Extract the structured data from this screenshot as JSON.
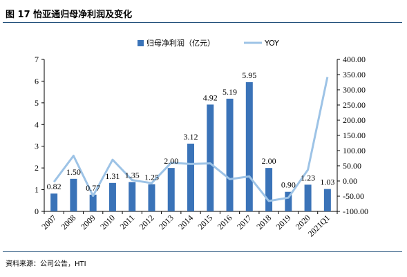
{
  "figure": {
    "title": "图 17 怡亚通归母净利润及变化",
    "source": "资料来源：公司公告，HTI"
  },
  "colors": {
    "bar": "#3a73b8",
    "line": "#9dc3e6",
    "axis": "#000000"
  },
  "chart_data": {
    "type": "bar+line",
    "categories": [
      "2007",
      "2008",
      "2009",
      "2010",
      "2011",
      "2012",
      "2013",
      "2014",
      "2015",
      "2016",
      "2017",
      "2018",
      "2019",
      "2020",
      "2021Q1"
    ],
    "series": [
      {
        "name": "归母净利润（亿元）",
        "type": "bar",
        "axis": "left",
        "values": [
          0.82,
          1.5,
          0.77,
          1.31,
          1.35,
          1.25,
          2.0,
          3.12,
          4.92,
          5.19,
          5.95,
          2.0,
          0.9,
          1.23,
          1.03
        ],
        "labels": [
          "0.82",
          "1.50",
          "0.77",
          "1.31",
          "1.35",
          "1.25",
          "2.00",
          "3.12",
          "4.92",
          "5.19",
          "5.95",
          "2.00",
          "0.90",
          "1.23",
          "1.03"
        ]
      },
      {
        "name": "YOY",
        "type": "line",
        "axis": "right",
        "values": [
          -3,
          83,
          -49,
          70,
          3,
          -7,
          60,
          56,
          58,
          6,
          15,
          -66,
          -55,
          37,
          342
        ]
      }
    ],
    "y_left": {
      "min": 0,
      "max": 7,
      "ticks": [
        "0",
        "1",
        "2",
        "3",
        "4",
        "5",
        "6",
        "7"
      ]
    },
    "y_right": {
      "min": -100,
      "max": 400,
      "ticks": [
        "-100.00",
        "-50.00",
        "0.00",
        "50.00",
        "100.00",
        "150.00",
        "200.00",
        "250.00",
        "300.00",
        "350.00",
        "400.00"
      ]
    },
    "legend_position": "top-center",
    "grid": false
  }
}
